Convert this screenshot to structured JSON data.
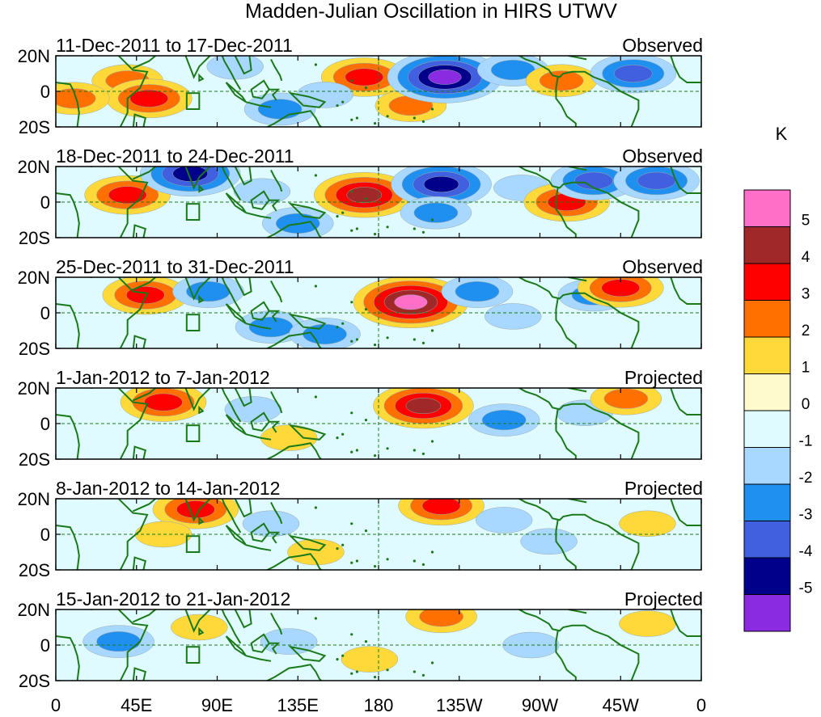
{
  "chart_data": {
    "type": "heatmap",
    "title": "Madden-Julian Oscillation in HIRS UTWV",
    "colorbar": {
      "unit": "K",
      "labels": [
        "5",
        "4",
        "3",
        "2",
        "1",
        "0",
        "-1",
        "-2",
        "-3",
        "-4",
        "-5"
      ],
      "colors": [
        "#ff6ec7",
        "#a02828",
        "#ff0000",
        "#ff7000",
        "#ffd93a",
        "#fffacd",
        "#e0fbff",
        "#a8d8ff",
        "#2090f0",
        "#4060e0",
        "#00008b",
        "#8a2be2"
      ]
    },
    "x_ticks": [
      "0",
      "45E",
      "90E",
      "135E",
      "180",
      "135W",
      "90W",
      "45W",
      "0"
    ],
    "y_ticks": [
      "20N",
      "0",
      "20S"
    ],
    "panels": [
      {
        "period": "11-Dec-2011 to 17-Dec-2011",
        "status": "Observed",
        "anomalies": [
          {
            "lon": 40,
            "lat": 6,
            "value": 2
          },
          {
            "lon": 52,
            "lat": -4,
            "value": 3
          },
          {
            "lon": 10,
            "lat": -4,
            "value": 2
          },
          {
            "lon": 125,
            "lat": -10,
            "value": -2
          },
          {
            "lon": 172,
            "lat": 8,
            "value": 3
          },
          {
            "lon": 198,
            "lat": -8,
            "value": 2
          },
          {
            "lon": 217,
            "lat": 8,
            "value": -5
          },
          {
            "lon": 255,
            "lat": 12,
            "value": -2
          },
          {
            "lon": 282,
            "lat": 6,
            "value": 2
          },
          {
            "lon": 322,
            "lat": 10,
            "value": -3
          },
          {
            "lon": 100,
            "lat": 14,
            "value": -1
          },
          {
            "lon": 150,
            "lat": -2,
            "value": -1
          }
        ]
      },
      {
        "period": "18-Dec-2011 to 24-Dec-2011",
        "status": "Observed",
        "anomalies": [
          {
            "lon": 40,
            "lat": 4,
            "value": 3
          },
          {
            "lon": 75,
            "lat": 16,
            "value": -4
          },
          {
            "lon": 115,
            "lat": 6,
            "value": -1
          },
          {
            "lon": 135,
            "lat": -12,
            "value": -2
          },
          {
            "lon": 172,
            "lat": 4,
            "value": 4
          },
          {
            "lon": 215,
            "lat": 10,
            "value": -4
          },
          {
            "lon": 212,
            "lat": -6,
            "value": -2
          },
          {
            "lon": 260,
            "lat": 8,
            "value": -1
          },
          {
            "lon": 285,
            "lat": 0,
            "value": 3
          },
          {
            "lon": 300,
            "lat": 12,
            "value": -3
          },
          {
            "lon": 335,
            "lat": 12,
            "value": -3
          }
        ]
      },
      {
        "period": "25-Dec-2011 to 31-Dec-2011",
        "status": "Observed",
        "anomalies": [
          {
            "lon": 50,
            "lat": 10,
            "value": 3
          },
          {
            "lon": 85,
            "lat": 12,
            "value": -2
          },
          {
            "lon": 120,
            "lat": -8,
            "value": -2
          },
          {
            "lon": 150,
            "lat": -12,
            "value": -2
          },
          {
            "lon": 198,
            "lat": 6,
            "value": 5
          },
          {
            "lon": 235,
            "lat": 12,
            "value": -2
          },
          {
            "lon": 255,
            "lat": -2,
            "value": -1
          },
          {
            "lon": 300,
            "lat": 10,
            "value": -2
          },
          {
            "lon": 315,
            "lat": 14,
            "value": 3
          }
        ]
      },
      {
        "period": "1-Jan-2012 to 7-Jan-2012",
        "status": "Projected",
        "anomalies": [
          {
            "lon": 60,
            "lat": 12,
            "value": 3
          },
          {
            "lon": 110,
            "lat": 8,
            "value": -1
          },
          {
            "lon": 130,
            "lat": -8,
            "value": 1
          },
          {
            "lon": 205,
            "lat": 10,
            "value": 4
          },
          {
            "lon": 250,
            "lat": 2,
            "value": -2
          },
          {
            "lon": 295,
            "lat": 6,
            "value": -1
          },
          {
            "lon": 318,
            "lat": 14,
            "value": 2
          }
        ]
      },
      {
        "period": "8-Jan-2012 to 14-Jan-2012",
        "status": "Projected",
        "anomalies": [
          {
            "lon": 78,
            "lat": 14,
            "value": 3
          },
          {
            "lon": 60,
            "lat": 0,
            "value": 1
          },
          {
            "lon": 120,
            "lat": 6,
            "value": -1
          },
          {
            "lon": 145,
            "lat": -10,
            "value": 1
          },
          {
            "lon": 215,
            "lat": 16,
            "value": 3
          },
          {
            "lon": 250,
            "lat": 8,
            "value": -1
          },
          {
            "lon": 275,
            "lat": -4,
            "value": -1
          },
          {
            "lon": 330,
            "lat": 6,
            "value": 1
          }
        ]
      },
      {
        "period": "15-Jan-2012 to 21-Jan-2012",
        "status": "Projected",
        "anomalies": [
          {
            "lon": 35,
            "lat": 2,
            "value": -2
          },
          {
            "lon": 80,
            "lat": 10,
            "value": 1
          },
          {
            "lon": 130,
            "lat": 2,
            "value": -1
          },
          {
            "lon": 215,
            "lat": 16,
            "value": 2
          },
          {
            "lon": 175,
            "lat": -8,
            "value": 1
          },
          {
            "lon": 265,
            "lat": 0,
            "value": -1
          },
          {
            "lon": 330,
            "lat": 12,
            "value": 1
          }
        ]
      }
    ]
  }
}
